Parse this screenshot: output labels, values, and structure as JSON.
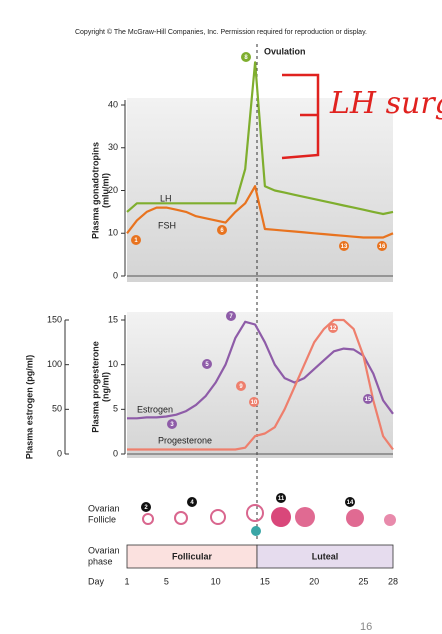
{
  "copyright": "Copyright © The McGraw-Hill Companies, Inc. Permission required for reproduction or display.",
  "ovulation": "Ovulation",
  "annotation": "LH surge",
  "chart_data": [
    {
      "type": "line",
      "ylabel": [
        "Plasma gonadotropins",
        "(mlu/ml)"
      ],
      "x": [
        1,
        2,
        3,
        4,
        5,
        6,
        7,
        8,
        9,
        10,
        11,
        12,
        13,
        14,
        15,
        16,
        17,
        18,
        19,
        20,
        21,
        22,
        23,
        24,
        25,
        26,
        27,
        28
      ],
      "xlim": [
        1,
        28
      ],
      "ylim": [
        0,
        40
      ],
      "yticks": [
        0,
        10,
        20,
        30,
        40
      ],
      "series": [
        {
          "name": "LH",
          "color": "#7fae2e",
          "values": [
            15,
            17,
            17,
            17,
            17,
            17,
            17,
            17,
            17,
            17,
            17,
            17,
            25,
            50,
            21,
            20,
            19.5,
            19,
            18.5,
            18,
            17.5,
            17,
            16.5,
            16,
            15.5,
            15,
            14.5,
            15
          ]
        },
        {
          "name": "FSH",
          "color": "#e8731f",
          "values": [
            10,
            13,
            15,
            16,
            16,
            15.5,
            15,
            14,
            13.5,
            13,
            12.5,
            15,
            17,
            21,
            11,
            10.8,
            10.6,
            10.4,
            10.2,
            10,
            9.8,
            9.6,
            9.4,
            9.2,
            9,
            9,
            9,
            10
          ]
        }
      ]
    },
    {
      "type": "line",
      "ylabel": [
        "Plasma progesterone",
        "(ng/ml)"
      ],
      "y2label": "Plasma estrogen (pg/ml)",
      "x": [
        1,
        2,
        3,
        4,
        5,
        6,
        7,
        8,
        9,
        10,
        11,
        12,
        13,
        14,
        15,
        16,
        17,
        18,
        19,
        20,
        21,
        22,
        23,
        24,
        25,
        26,
        27,
        28
      ],
      "xlim": [
        1,
        28
      ],
      "ylim": [
        0,
        15
      ],
      "yticks": [
        0,
        5,
        10,
        15
      ],
      "y2lim": [
        0,
        150
      ],
      "y2ticks": [
        0,
        50,
        100,
        150
      ],
      "series": [
        {
          "name": "Estrogen",
          "color": "#8e5ca8",
          "axis": "y2",
          "values": [
            40,
            40,
            41,
            41,
            42,
            44,
            48,
            55,
            65,
            80,
            100,
            130,
            148,
            145,
            125,
            100,
            85,
            80,
            85,
            95,
            105,
            115,
            118,
            117,
            110,
            90,
            60,
            45
          ]
        },
        {
          "name": "Progesterone",
          "color": "#ee7f6d",
          "values": [
            0.5,
            0.5,
            0.5,
            0.5,
            0.5,
            0.5,
            0.5,
            0.5,
            0.5,
            0.5,
            0.5,
            0.5,
            0.7,
            2,
            2.3,
            3,
            5,
            7.5,
            10,
            12.5,
            14,
            15,
            15,
            14,
            11,
            6,
            2,
            0.5
          ]
        }
      ]
    }
  ],
  "callouts": [
    {
      "label": "1",
      "color": "#e8731f"
    },
    {
      "label": "2",
      "color": "#111"
    },
    {
      "label": "3",
      "color": "#8e5ca8"
    },
    {
      "label": "4",
      "color": "#111"
    },
    {
      "label": "5",
      "color": "#8e5ca8"
    },
    {
      "label": "6",
      "color": "#e8731f"
    },
    {
      "label": "7",
      "color": "#8e5ca8"
    },
    {
      "label": "8",
      "color": "#7fae2e"
    },
    {
      "label": "9",
      "color": "#ee7f6d"
    },
    {
      "label": "10",
      "color": "#ee7f6d"
    },
    {
      "label": "11",
      "color": "#111"
    },
    {
      "label": "12",
      "color": "#ee7f6d"
    },
    {
      "label": "13",
      "color": "#e8731f"
    },
    {
      "label": "14",
      "color": "#111"
    },
    {
      "label": "15",
      "color": "#8e5ca8"
    },
    {
      "label": "16",
      "color": "#e8731f"
    }
  ],
  "follicle_label": [
    "Ovarian",
    "Follicle"
  ],
  "phase_label": [
    "Ovarian",
    "phase"
  ],
  "phases": [
    "Follicular",
    "Luteal"
  ],
  "day_axis": {
    "label": "Day",
    "ticks": [
      1,
      5,
      10,
      15,
      20,
      25,
      28
    ]
  },
  "page_number": "16"
}
